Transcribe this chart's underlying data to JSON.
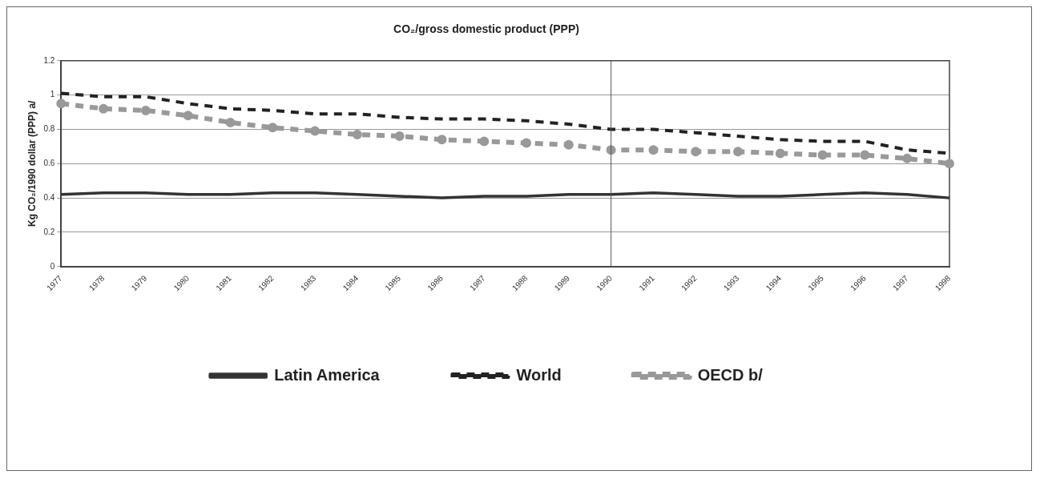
{
  "chart_data": {
    "type": "line",
    "title": "CO₂/gross domestic product (PPP)",
    "ylabel": "Kg CO₂/1990 dollar (PPP) a/",
    "categories": [
      "1977",
      "1978",
      "1979",
      "1980",
      "1981",
      "1982",
      "1983",
      "1984",
      "1985",
      "1986",
      "1987",
      "1988",
      "1989",
      "1990",
      "1991",
      "1992",
      "1993",
      "1994",
      "1995",
      "1996",
      "1997",
      "1998"
    ],
    "series": [
      {
        "name": "Latin America",
        "color": "#333333",
        "line_style": "solid",
        "marker": "none",
        "values": [
          0.42,
          0.43,
          0.43,
          0.42,
          0.42,
          0.43,
          0.43,
          0.42,
          0.41,
          0.4,
          0.41,
          0.41,
          0.42,
          0.42,
          0.43,
          0.42,
          0.41,
          0.41,
          0.42,
          0.43,
          0.42,
          0.4
        ]
      },
      {
        "name": "World",
        "color": "#222222",
        "line_style": "dashed",
        "marker": "none",
        "values": [
          1.01,
          0.99,
          0.99,
          0.95,
          0.92,
          0.91,
          0.89,
          0.89,
          0.87,
          0.86,
          0.86,
          0.85,
          0.83,
          0.8,
          0.8,
          0.78,
          0.76,
          0.74,
          0.73,
          0.73,
          0.68,
          0.66
        ]
      },
      {
        "name": "OECD b/",
        "color": "#999999",
        "line_style": "dashed",
        "marker": "circle",
        "values": [
          0.95,
          0.92,
          0.91,
          0.88,
          0.84,
          0.81,
          0.79,
          0.77,
          0.76,
          0.74,
          0.73,
          0.72,
          0.71,
          0.68,
          0.68,
          0.67,
          0.67,
          0.66,
          0.65,
          0.65,
          0.63,
          0.6
        ]
      }
    ],
    "ylim": [
      0,
      1.2
    ],
    "yticks": [
      0,
      0.2,
      0.4,
      0.6,
      0.8,
      1,
      1.2
    ],
    "grid": "y",
    "legend": "bottom",
    "ref_lines": [
      {
        "axis": "x",
        "value": "1990",
        "color": "#555555"
      }
    ]
  }
}
